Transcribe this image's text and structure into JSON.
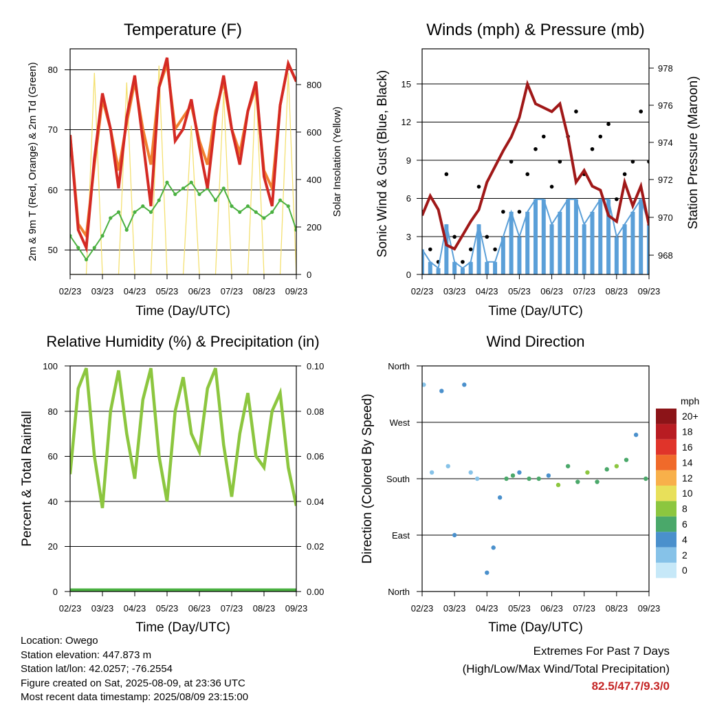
{
  "x_ticks": [
    "02/23",
    "03/23",
    "04/23",
    "05/23",
    "06/23",
    "07/23",
    "08/23",
    "09/23"
  ],
  "panels": {
    "temperature": {
      "title": "Temperature (F)",
      "xlabel": "Time (Day/UTC)",
      "ylabel_left": "2m & 9m T (Red, Orange) & 2m Td (Green)",
      "ylabel_right": "Solar Insolation (Yellow)",
      "left_ticks": [
        "50",
        "60",
        "70",
        "80"
      ],
      "right_ticks": [
        "0",
        "200",
        "400",
        "600",
        "800"
      ]
    },
    "winds": {
      "title": "Winds (mph) & Pressure (mb)",
      "xlabel": "Time (Day/UTC)",
      "ylabel_left": "Sonic Wind & Gust (Blue, Black)",
      "ylabel_right": "Station Pressure (Maroon)",
      "left_ticks": [
        "0",
        "3",
        "6",
        "9",
        "12",
        "15"
      ],
      "right_ticks": [
        "968",
        "970",
        "972",
        "974",
        "976",
        "978"
      ]
    },
    "humidity": {
      "title": "Relative Humidity (%) & Precipitation (in)",
      "xlabel": "Time (Day/UTC)",
      "ylabel_left": "Percent & Total Rainfall",
      "left_ticks": [
        "0",
        "20",
        "40",
        "60",
        "80",
        "100"
      ],
      "right_ticks": [
        "0.00",
        "0.02",
        "0.04",
        "0.06",
        "0.08",
        "0.10"
      ]
    },
    "wind_direction": {
      "title": "Wind Direction",
      "xlabel": "Time (Day/UTC)",
      "ylabel_left": "Direction (Colored By Speed)",
      "left_ticks": [
        "North",
        "East",
        "South",
        "West",
        "North"
      ],
      "colorbar_title": "mph",
      "colorbar_labels": [
        "0",
        "2",
        "4",
        "6",
        "8",
        "10",
        "12",
        "14",
        "16",
        "18",
        "20+"
      ],
      "colorbar_colors": [
        "#c6e8f8",
        "#86c2e8",
        "#4a90cc",
        "#4aa86a",
        "#8cc63f",
        "#e8e05a",
        "#f8b04a",
        "#f06a2a",
        "#e0342a",
        "#b81c22",
        "#8c1418"
      ]
    }
  },
  "colors": {
    "temp_2m": "#d42a24",
    "temp_9m": "#f08030",
    "dewpoint": "#4ab040",
    "insolation": "#f4e070",
    "gust": "#000000",
    "wind": "#5a9fd8",
    "pressure": "#a01818",
    "rh": "#8cc63f",
    "precip": "#4ab040"
  },
  "info": {
    "location": "Location: Owego",
    "elevation": "Station elevation: 447.873 m",
    "latlon": "Station lat/lon: 42.0257; -76.2554",
    "created": "Figure created on Sat, 2025-08-09, at 23:36 UTC",
    "recent": "Most recent data timestamp: 2025/08/09 23:15:00"
  },
  "extremes": {
    "title": "Extremes For Past 7 Days",
    "subtitle": "(High/Low/Max Wind/Total Precipitation)",
    "values": "82.5/47.7/9.3/0"
  },
  "chart_data": [
    {
      "type": "line",
      "title": "Temperature (F)",
      "xlabel": "Time (Day/UTC)",
      "ylabel": "2m & 9m T (Red, Orange) & 2m Td (Green)",
      "ylabel_right": "Solar Insolation (Yellow)",
      "ylim": [
        45.5,
        83.5
      ],
      "ylim_right": [
        0,
        940
      ],
      "x": [
        0,
        0.25,
        0.5,
        0.75,
        1,
        1.25,
        1.5,
        1.75,
        2,
        2.25,
        2.5,
        2.75,
        3,
        3.25,
        3.5,
        3.75,
        4,
        4.25,
        4.5,
        4.75,
        5,
        5.25,
        5.5,
        5.75,
        6,
        6.25,
        6.5,
        6.75,
        7
      ],
      "x_unit": "days from 02/23",
      "series": [
        {
          "name": "2m T",
          "values": [
            69,
            53,
            50,
            65,
            76,
            70,
            60,
            72,
            79,
            68,
            57,
            77,
            82,
            68,
            70,
            75,
            67,
            60,
            72,
            79,
            70,
            64,
            73,
            78,
            62,
            57,
            74,
            81,
            78
          ]
        },
        {
          "name": "9m T",
          "values": [
            69,
            54,
            52,
            64,
            75,
            70,
            63,
            71,
            78,
            70,
            64,
            77,
            81,
            70,
            72,
            74,
            68,
            64,
            73,
            78,
            70,
            66,
            73,
            77,
            63,
            60,
            74,
            81,
            78
          ]
        },
        {
          "name": "2m Td",
          "values": [
            52,
            50,
            48,
            50,
            52,
            55,
            56,
            53,
            56,
            57,
            56,
            58,
            61,
            59,
            60,
            61,
            59,
            60,
            58,
            60,
            57,
            56,
            57,
            56,
            55,
            56,
            58,
            57,
            53
          ]
        },
        {
          "name": "Solar Insolation",
          "values": [
            0,
            0,
            0,
            840,
            0,
            0,
            0,
            800,
            0,
            0,
            0,
            870,
            0,
            0,
            0,
            620,
            0,
            0,
            0,
            760,
            0,
            0,
            0,
            800,
            0,
            0,
            0,
            840,
            0
          ]
        }
      ]
    },
    {
      "type": "line",
      "title": "Winds (mph) & Pressure (mb)",
      "xlabel": "Time (Day/UTC)",
      "ylabel": "Sonic Wind & Gust (Blue, Black)",
      "ylabel_right": "Station Pressure (Maroon)",
      "ylim": [
        0,
        18
      ],
      "ylim_right": [
        967.5,
        979
      ],
      "x": [
        0,
        0.25,
        0.5,
        0.75,
        1,
        1.25,
        1.5,
        1.75,
        2,
        2.25,
        2.5,
        2.75,
        3,
        3.25,
        3.5,
        3.75,
        4,
        4.25,
        4.5,
        4.75,
        5,
        5.25,
        5.5,
        5.75,
        6,
        6.25,
        6.5,
        6.75,
        7
      ],
      "x_unit": "days from 02/23",
      "series": [
        {
          "name": "Gust",
          "values": [
            5,
            2,
            1,
            8,
            3,
            1,
            2,
            7,
            3,
            2,
            5,
            9,
            5,
            8,
            10,
            11,
            7,
            9,
            11,
            13,
            8,
            10,
            11,
            12,
            6,
            8,
            9,
            13,
            9
          ]
        },
        {
          "name": "Wind",
          "values": [
            2,
            1,
            0.5,
            4,
            1,
            0.5,
            1,
            4,
            1,
            1,
            3,
            5,
            3,
            5,
            6,
            6,
            4,
            5,
            6,
            6,
            4,
            5,
            6,
            6,
            3,
            4,
            5,
            6,
            4
          ]
        },
        {
          "name": "Pressure",
          "values": [
            970.5,
            971.5,
            970.8,
            969.0,
            968.8,
            969.5,
            970.2,
            970.8,
            972.2,
            973.0,
            973.8,
            974.5,
            975.5,
            977.2,
            976.2,
            976.0,
            975.8,
            976.2,
            974.5,
            972.2,
            972.8,
            972.0,
            971.8,
            970.5,
            970.2,
            972.2,
            971.0,
            972.0,
            970.0
          ]
        }
      ]
    },
    {
      "type": "line",
      "title": "Relative Humidity (%) & Precipitation (in)",
      "xlabel": "Time (Day/UTC)",
      "ylabel": "Percent & Total Rainfall",
      "ylim": [
        0,
        100
      ],
      "ylim_right": [
        0,
        0.1
      ],
      "x": [
        0,
        0.25,
        0.5,
        0.75,
        1,
        1.25,
        1.5,
        1.75,
        2,
        2.25,
        2.5,
        2.75,
        3,
        3.25,
        3.5,
        3.75,
        4,
        4.25,
        4.5,
        4.75,
        5,
        5.25,
        5.5,
        5.75,
        6,
        6.25,
        6.5,
        6.75,
        7
      ],
      "x_unit": "days from 02/23",
      "series": [
        {
          "name": "Relative Humidity",
          "values": [
            52,
            90,
            99,
            60,
            37,
            80,
            98,
            70,
            50,
            85,
            99,
            60,
            40,
            80,
            95,
            70,
            62,
            90,
            99,
            65,
            42,
            70,
            88,
            60,
            55,
            80,
            88,
            55,
            38
          ]
        },
        {
          "name": "Total Precipitation",
          "values": [
            0,
            0,
            0,
            0,
            0,
            0,
            0,
            0,
            0,
            0,
            0,
            0,
            0,
            0,
            0,
            0,
            0,
            0,
            0,
            0,
            0,
            0,
            0,
            0,
            0,
            0,
            0,
            0,
            0
          ]
        }
      ]
    },
    {
      "type": "scatter",
      "title": "Wind Direction",
      "xlabel": "Time (Day/UTC)",
      "ylabel": "Direction (Colored By Speed)",
      "y_categories": [
        "North",
        "East",
        "South",
        "West",
        "North"
      ],
      "ylim": [
        0,
        360
      ],
      "x": [
        0.05,
        0.3,
        0.6,
        0.8,
        1.0,
        1.3,
        1.5,
        1.7,
        2.0,
        2.2,
        2.4,
        2.6,
        2.8,
        3.0,
        3.3,
        3.6,
        3.9,
        4.2,
        4.5,
        4.8,
        5.1,
        5.4,
        5.7,
        6.0,
        6.3,
        6.6,
        6.9
      ],
      "x_unit": "days from 02/23",
      "values": [
        330,
        190,
        320,
        200,
        90,
        330,
        190,
        180,
        30,
        70,
        150,
        180,
        185,
        190,
        180,
        180,
        185,
        170,
        200,
        175,
        190,
        175,
        195,
        200,
        210,
        250,
        180
      ],
      "speeds": [
        2,
        1,
        4,
        2,
        3,
        4,
        2,
        1,
        3,
        4,
        4,
        5,
        6,
        4,
        5,
        6,
        4,
        7,
        5,
        6,
        7,
        5,
        6,
        7,
        5,
        4,
        6
      ],
      "colorbar_title": "mph"
    }
  ]
}
